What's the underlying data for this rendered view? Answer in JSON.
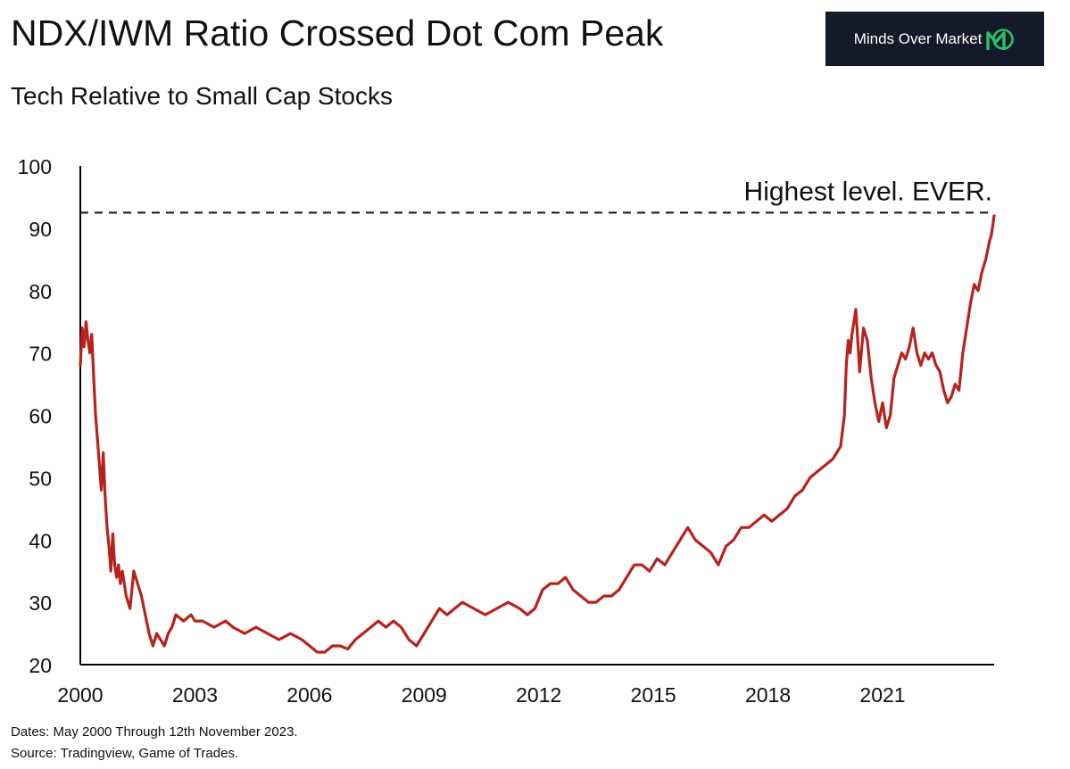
{
  "header": {
    "title": "NDX/IWM Ratio Crossed Dot Com Peak",
    "subtitle": "Tech Relative to Small Cap Stocks",
    "logo_text": "Minds Over Market",
    "logo_icon": "mom-logo-icon"
  },
  "footer": {
    "dates_note": "Dates: May 2000 Through 12th November 2023.",
    "source_note": "Source: Tradingview, Game of Trades."
  },
  "colors": {
    "line": "#b8221c",
    "text": "#111111",
    "logo_bg": "#151a2a",
    "logo_accent": "#2fbf6a"
  },
  "chart_data": {
    "type": "line",
    "title": "NDX/IWM Ratio Crossed Dot Com Peak",
    "subtitle": "Tech Relative to Small Cap Stocks",
    "xlabel": "",
    "ylabel": "",
    "xlim": [
      2000,
      2023.92
    ],
    "ylim": [
      20,
      100
    ],
    "x_ticks": [
      2000,
      2003,
      2006,
      2009,
      2012,
      2015,
      2018,
      2021
    ],
    "y_ticks": [
      20,
      30,
      40,
      50,
      60,
      70,
      80,
      90,
      100
    ],
    "grid": false,
    "legend": "none",
    "reference_line": {
      "y": 92.5,
      "style": "dashed",
      "label": "Highest level. EVER."
    },
    "series": [
      {
        "x": [
          2000.0,
          2000.05,
          2000.1,
          2000.15,
          2000.2,
          2000.25,
          2000.3,
          2000.35,
          2000.4,
          2000.45,
          2000.5,
          2000.55,
          2000.6,
          2000.65,
          2000.7,
          2000.75,
          2000.8,
          2000.85,
          2000.9,
          2000.95,
          2001.0,
          2001.05,
          2001.1,
          2001.2,
          2001.3,
          2001.4,
          2001.5,
          2001.6,
          2001.7,
          2001.8,
          2001.9,
          2002.0,
          2002.1,
          2002.2,
          2002.3,
          2002.4,
          2002.5,
          2002.7,
          2002.9,
          2003.0,
          2003.2,
          2003.5,
          2003.8,
          2004.0,
          2004.3,
          2004.6,
          2004.9,
          2005.2,
          2005.5,
          2005.8,
          2006.0,
          2006.2,
          2006.4,
          2006.6,
          2006.8,
          2007.0,
          2007.2,
          2007.4,
          2007.6,
          2007.8,
          2008.0,
          2008.2,
          2008.4,
          2008.6,
          2008.8,
          2009.0,
          2009.2,
          2009.4,
          2009.6,
          2009.8,
          2010.0,
          2010.3,
          2010.6,
          2010.9,
          2011.2,
          2011.5,
          2011.7,
          2011.9,
          2012.1,
          2012.3,
          2012.5,
          2012.7,
          2012.9,
          2013.1,
          2013.3,
          2013.5,
          2013.7,
          2013.9,
          2014.1,
          2014.3,
          2014.5,
          2014.7,
          2014.9,
          2015.1,
          2015.3,
          2015.5,
          2015.7,
          2015.9,
          2016.1,
          2016.3,
          2016.5,
          2016.7,
          2016.9,
          2017.1,
          2017.3,
          2017.5,
          2017.7,
          2017.9,
          2018.1,
          2018.3,
          2018.5,
          2018.7,
          2018.9,
          2019.1,
          2019.3,
          2019.5,
          2019.7,
          2019.9,
          2020.0,
          2020.05,
          2020.1,
          2020.15,
          2020.2,
          2020.3,
          2020.4,
          2020.5,
          2020.6,
          2020.7,
          2020.8,
          2020.9,
          2021.0,
          2021.1,
          2021.2,
          2021.3,
          2021.4,
          2021.5,
          2021.6,
          2021.7,
          2021.8,
          2021.9,
          2022.0,
          2022.1,
          2022.2,
          2022.3,
          2022.4,
          2022.5,
          2022.6,
          2022.7,
          2022.8,
          2022.9,
          2023.0,
          2023.1,
          2023.2,
          2023.3,
          2023.4,
          2023.5,
          2023.6,
          2023.7,
          2023.8,
          2023.85,
          2023.92
        ],
        "y": [
          68,
          74,
          71,
          75,
          72,
          70,
          73,
          66,
          60,
          56,
          52,
          48,
          54,
          47,
          42,
          39,
          35,
          41,
          36,
          34,
          36,
          33,
          35,
          31,
          29,
          35,
          33,
          31,
          28,
          25,
          23,
          25,
          24,
          23,
          25,
          26,
          28,
          27,
          28,
          27,
          27,
          26,
          27,
          26,
          25,
          26,
          25,
          24,
          25,
          24,
          23,
          22,
          22,
          23,
          23,
          22.5,
          24,
          25,
          26,
          27,
          26,
          27,
          26,
          24,
          23,
          25,
          27,
          29,
          28,
          29,
          30,
          29,
          28,
          29,
          30,
          29,
          28,
          29,
          32,
          33,
          33,
          34,
          32,
          31,
          30,
          30,
          31,
          31,
          32,
          34,
          36,
          36,
          35,
          37,
          36,
          38,
          40,
          42,
          40,
          39,
          38,
          36,
          39,
          40,
          42,
          42,
          43,
          44,
          43,
          44,
          45,
          47,
          48,
          50,
          51,
          52,
          53,
          55,
          60,
          68,
          72,
          70,
          73,
          77,
          67,
          74,
          72,
          66,
          62,
          59,
          62,
          58,
          60,
          66,
          68,
          70,
          69,
          71,
          74,
          70,
          68,
          70,
          69,
          70,
          68,
          67,
          64,
          62,
          63,
          65,
          64,
          70,
          74,
          78,
          81,
          80,
          83,
          85,
          88,
          89,
          92
        ]
      }
    ]
  }
}
